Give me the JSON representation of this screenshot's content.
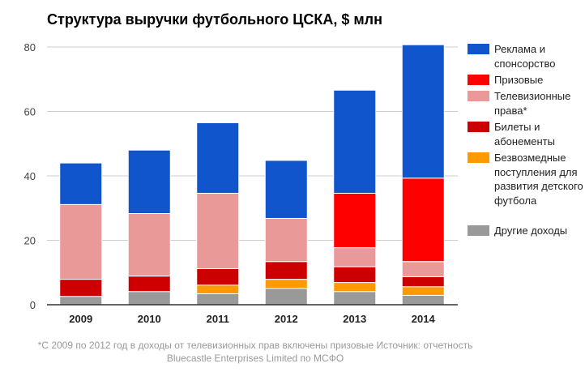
{
  "chart_data": {
    "type": "bar",
    "stacked": true,
    "title": "Структура выручки футбольного ЦСКА, $ млн",
    "xlabel": "",
    "ylabel": "",
    "ylim": [
      0,
      80
    ],
    "yticks": [
      0,
      20,
      40,
      60,
      80
    ],
    "grid": true,
    "legend_position": "right",
    "categories": [
      "2009",
      "2010",
      "2011",
      "2012",
      "2013",
      "2014"
    ],
    "series": [
      {
        "name": "Другие доходы",
        "color": "#999999",
        "values": [
          2.6,
          4.1,
          3.4,
          5.1,
          4.1,
          2.9
        ]
      },
      {
        "name": "Безвозмедные поступления для развития детского футбола",
        "color": "#FF9900",
        "values": [
          0,
          0,
          2.7,
          2.8,
          2.8,
          2.7
        ]
      },
      {
        "name": "Билеты и абонементы",
        "color": "#CC0000",
        "values": [
          5.3,
          4.8,
          5.1,
          5.5,
          4.9,
          3.1
        ]
      },
      {
        "name": "Телевизионные права*",
        "color": "#EA9999",
        "values": [
          23.2,
          19.4,
          23.4,
          13.4,
          5.9,
          4.7
        ]
      },
      {
        "name": "Призовые",
        "color": "#FF0000",
        "values": [
          0,
          0,
          0,
          0,
          16.9,
          25.9
        ]
      },
      {
        "name": "Реклама и спонсорство",
        "color": "#1155CC",
        "values": [
          12.9,
          19.7,
          21.9,
          18.0,
          32.0,
          41.4
        ]
      }
    ],
    "legend": [
      {
        "label": "Реклама и спонсорство",
        "color": "#1155CC"
      },
      {
        "label": "Призовые",
        "color": "#FF0000"
      },
      {
        "label": "Телевизионные права*",
        "color": "#EA9999"
      },
      {
        "label": "Билеты и абонементы",
        "color": "#CC0000"
      },
      {
        "label": "Безвозмедные поступления для развития детского футбола",
        "color": "#FF9900"
      },
      {
        "label": "Другие доходы",
        "color": "#999999"
      }
    ],
    "footnote": "*С 2009 по 2012 год в доходы от телевизионных прав включены призовые Источник: отчетность Bluecastle Enterprises Limited по МСФО"
  }
}
